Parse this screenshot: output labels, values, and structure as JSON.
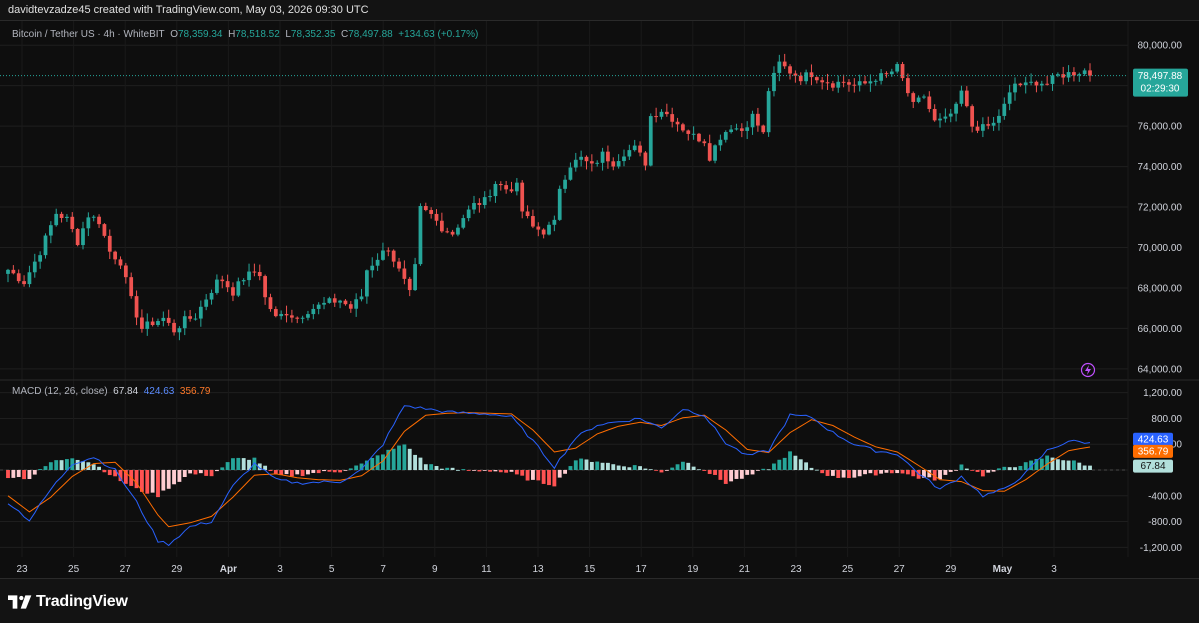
{
  "header": {
    "credit": "davidtevzadze45 created with TradingView.com, May 03, 2026 09:30 UTC"
  },
  "legend": {
    "symbol": "Bitcoin / Tether US · 4h · WhiteBIT",
    "o_label": "O",
    "o_value": "78,359.34",
    "h_label": "H",
    "h_value": "78,518.52",
    "l_label": "L",
    "l_value": "78,352.35",
    "c_label": "C",
    "c_value": "78,497.88",
    "change": "+134.63 (+0.17%)"
  },
  "macd_legend": {
    "name": "MACD (12, 26, close)",
    "hist": "67.84",
    "macd": "424.63",
    "signal": "356.79"
  },
  "footer": {
    "brand": "TradingView"
  },
  "colors": {
    "up": "#26a69a",
    "down": "#ef5350",
    "macd": "#2962ff",
    "signal": "#ff6d00",
    "hist_up_strong": "#26a69a",
    "hist_up_weak": "#b2dfdb",
    "hist_down_strong": "#ff5252",
    "hist_down_weak": "#ffcdd2"
  },
  "chart_data": [
    {
      "type": "candlestick",
      "ylim": [
        63500,
        81000
      ],
      "yticks": [
        64000,
        66000,
        68000,
        70000,
        72000,
        74000,
        76000,
        78000,
        80000
      ],
      "ytick_labels": [
        "64,000.00",
        "66,000.00",
        "68,000.00",
        "70,000.00",
        "72,000.00",
        "74,000.00",
        "76,000.00",
        "78,000.00",
        "80,000.00"
      ],
      "xticks": [
        "23",
        "25",
        "27",
        "29",
        "Apr",
        "3",
        "5",
        "7",
        "9",
        "11",
        "13",
        "15",
        "17",
        "19",
        "21",
        "23",
        "25",
        "27",
        "29",
        "May",
        "3"
      ],
      "last_price": "78,497.88",
      "countdown": "02:29:30",
      "close_path": [
        [
          0,
          68900
        ],
        [
          3,
          68300
        ],
        [
          6,
          69800
        ],
        [
          9,
          71700
        ],
        [
          11,
          71400
        ],
        [
          13,
          70300
        ],
        [
          15,
          71600
        ],
        [
          17,
          71300
        ],
        [
          19,
          69800
        ],
        [
          21,
          69300
        ],
        [
          23,
          67400
        ],
        [
          25,
          66000
        ],
        [
          27,
          66300
        ],
        [
          29,
          66500
        ],
        [
          31,
          65900
        ],
        [
          33,
          66400
        ],
        [
          35,
          66600
        ],
        [
          37,
          67500
        ],
        [
          39,
          68300
        ],
        [
          40,
          68400
        ],
        [
          42,
          67800
        ],
        [
          44,
          68500
        ],
        [
          46,
          68800
        ],
        [
          47,
          68700
        ],
        [
          48,
          67500
        ],
        [
          50,
          66500
        ],
        [
          52,
          66800
        ],
        [
          54,
          66500
        ],
        [
          56,
          66900
        ],
        [
          58,
          67100
        ],
        [
          60,
          67300
        ],
        [
          62,
          67400
        ],
        [
          64,
          67000
        ],
        [
          66,
          67600
        ],
        [
          67,
          68900
        ],
        [
          69,
          69500
        ],
        [
          71,
          70000
        ],
        [
          72,
          69400
        ],
        [
          74,
          68300
        ],
        [
          75,
          67700
        ],
        [
          76,
          69000
        ],
        [
          77,
          71900
        ],
        [
          79,
          71600
        ],
        [
          81,
          71000
        ],
        [
          83,
          70700
        ],
        [
          85,
          71500
        ],
        [
          87,
          72100
        ],
        [
          89,
          72300
        ],
        [
          91,
          73200
        ],
        [
          93,
          72900
        ],
        [
          95,
          73000
        ],
        [
          96,
          71800
        ],
        [
          98,
          71000
        ],
        [
          100,
          70800
        ],
        [
          102,
          71200
        ],
        [
          103,
          73000
        ],
        [
          105,
          74100
        ],
        [
          107,
          74400
        ],
        [
          109,
          74000
        ],
        [
          111,
          74600
        ],
        [
          113,
          74200
        ],
        [
          115,
          74700
        ],
        [
          117,
          74900
        ],
        [
          119,
          74200
        ],
        [
          120,
          76500
        ],
        [
          122,
          76800
        ],
        [
          124,
          76400
        ],
        [
          126,
          75900
        ],
        [
          128,
          75500
        ],
        [
          130,
          75300
        ],
        [
          131,
          74500
        ],
        [
          133,
          75500
        ],
        [
          135,
          76000
        ],
        [
          137,
          75800
        ],
        [
          139,
          76500
        ],
        [
          141,
          75600
        ],
        [
          142,
          77800
        ],
        [
          144,
          79100
        ],
        [
          146,
          78700
        ],
        [
          148,
          78400
        ],
        [
          150,
          78600
        ],
        [
          152,
          78300
        ],
        [
          154,
          78100
        ],
        [
          156,
          78200
        ],
        [
          158,
          78000
        ],
        [
          160,
          78100
        ],
        [
          162,
          78400
        ],
        [
          164,
          78500
        ],
        [
          166,
          78900
        ],
        [
          167,
          78300
        ],
        [
          169,
          77000
        ],
        [
          171,
          77500
        ],
        [
          173,
          76200
        ],
        [
          175,
          76300
        ],
        [
          177,
          76900
        ],
        [
          178,
          77700
        ],
        [
          180,
          76000
        ],
        [
          182,
          75900
        ],
        [
          184,
          76100
        ],
        [
          186,
          77000
        ],
        [
          188,
          78100
        ],
        [
          190,
          78000
        ],
        [
          192,
          78200
        ],
        [
          194,
          78100
        ],
        [
          196,
          78500
        ]
      ]
    },
    {
      "type": "macd",
      "name": "MACD (12, 26, close)",
      "ylim": [
        -1350,
        1350
      ],
      "yticks": [
        -1200,
        -800,
        -400,
        0,
        400,
        800,
        1200
      ],
      "ytick_labels": [
        "-1,200.00",
        "-800.00",
        "-400.00",
        "0.00",
        "400.00",
        "800.00",
        "1,200.00"
      ],
      "macd_path": [
        [
          0,
          -500
        ],
        [
          4,
          -780
        ],
        [
          8,
          -300
        ],
        [
          12,
          100
        ],
        [
          16,
          200
        ],
        [
          20,
          0
        ],
        [
          24,
          -500
        ],
        [
          28,
          -1100
        ],
        [
          30,
          -1150
        ],
        [
          34,
          -880
        ],
        [
          38,
          -800
        ],
        [
          42,
          -250
        ],
        [
          46,
          100
        ],
        [
          50,
          -150
        ],
        [
          54,
          -200
        ],
        [
          58,
          -190
        ],
        [
          62,
          -180
        ],
        [
          66,
          0
        ],
        [
          70,
          400
        ],
        [
          74,
          1000
        ],
        [
          78,
          950
        ],
        [
          82,
          900
        ],
        [
          86,
          880
        ],
        [
          90,
          870
        ],
        [
          94,
          820
        ],
        [
          98,
          450
        ],
        [
          102,
          50
        ],
        [
          106,
          500
        ],
        [
          110,
          700
        ],
        [
          114,
          750
        ],
        [
          118,
          800
        ],
        [
          122,
          650
        ],
        [
          126,
          950
        ],
        [
          130,
          850
        ],
        [
          134,
          420
        ],
        [
          138,
          220
        ],
        [
          142,
          300
        ],
        [
          146,
          850
        ],
        [
          150,
          820
        ],
        [
          154,
          580
        ],
        [
          158,
          400
        ],
        [
          162,
          300
        ],
        [
          166,
          250
        ],
        [
          170,
          -50
        ],
        [
          174,
          -300
        ],
        [
          178,
          -100
        ],
        [
          182,
          -400
        ],
        [
          186,
          -300
        ],
        [
          190,
          -50
        ],
        [
          194,
          300
        ],
        [
          198,
          450
        ],
        [
          202,
          424
        ]
      ],
      "signal_path": [
        [
          0,
          -400
        ],
        [
          4,
          -650
        ],
        [
          8,
          -420
        ],
        [
          12,
          -100
        ],
        [
          16,
          100
        ],
        [
          20,
          120
        ],
        [
          24,
          -200
        ],
        [
          28,
          -700
        ],
        [
          30,
          -880
        ],
        [
          34,
          -820
        ],
        [
          38,
          -720
        ],
        [
          42,
          -420
        ],
        [
          46,
          -80
        ],
        [
          50,
          -60
        ],
        [
          54,
          -120
        ],
        [
          58,
          -150
        ],
        [
          62,
          -160
        ],
        [
          66,
          -90
        ],
        [
          70,
          140
        ],
        [
          74,
          600
        ],
        [
          78,
          850
        ],
        [
          82,
          880
        ],
        [
          86,
          890
        ],
        [
          90,
          880
        ],
        [
          94,
          870
        ],
        [
          98,
          620
        ],
        [
          102,
          280
        ],
        [
          106,
          340
        ],
        [
          110,
          560
        ],
        [
          114,
          680
        ],
        [
          118,
          740
        ],
        [
          122,
          690
        ],
        [
          126,
          810
        ],
        [
          130,
          850
        ],
        [
          134,
          620
        ],
        [
          138,
          320
        ],
        [
          142,
          270
        ],
        [
          146,
          580
        ],
        [
          150,
          780
        ],
        [
          154,
          690
        ],
        [
          158,
          510
        ],
        [
          162,
          360
        ],
        [
          166,
          280
        ],
        [
          170,
          70
        ],
        [
          174,
          -150
        ],
        [
          178,
          -180
        ],
        [
          182,
          -320
        ],
        [
          186,
          -330
        ],
        [
          190,
          -150
        ],
        [
          194,
          90
        ],
        [
          198,
          300
        ],
        [
          202,
          357
        ]
      ],
      "hist_last": 67.84
    }
  ]
}
